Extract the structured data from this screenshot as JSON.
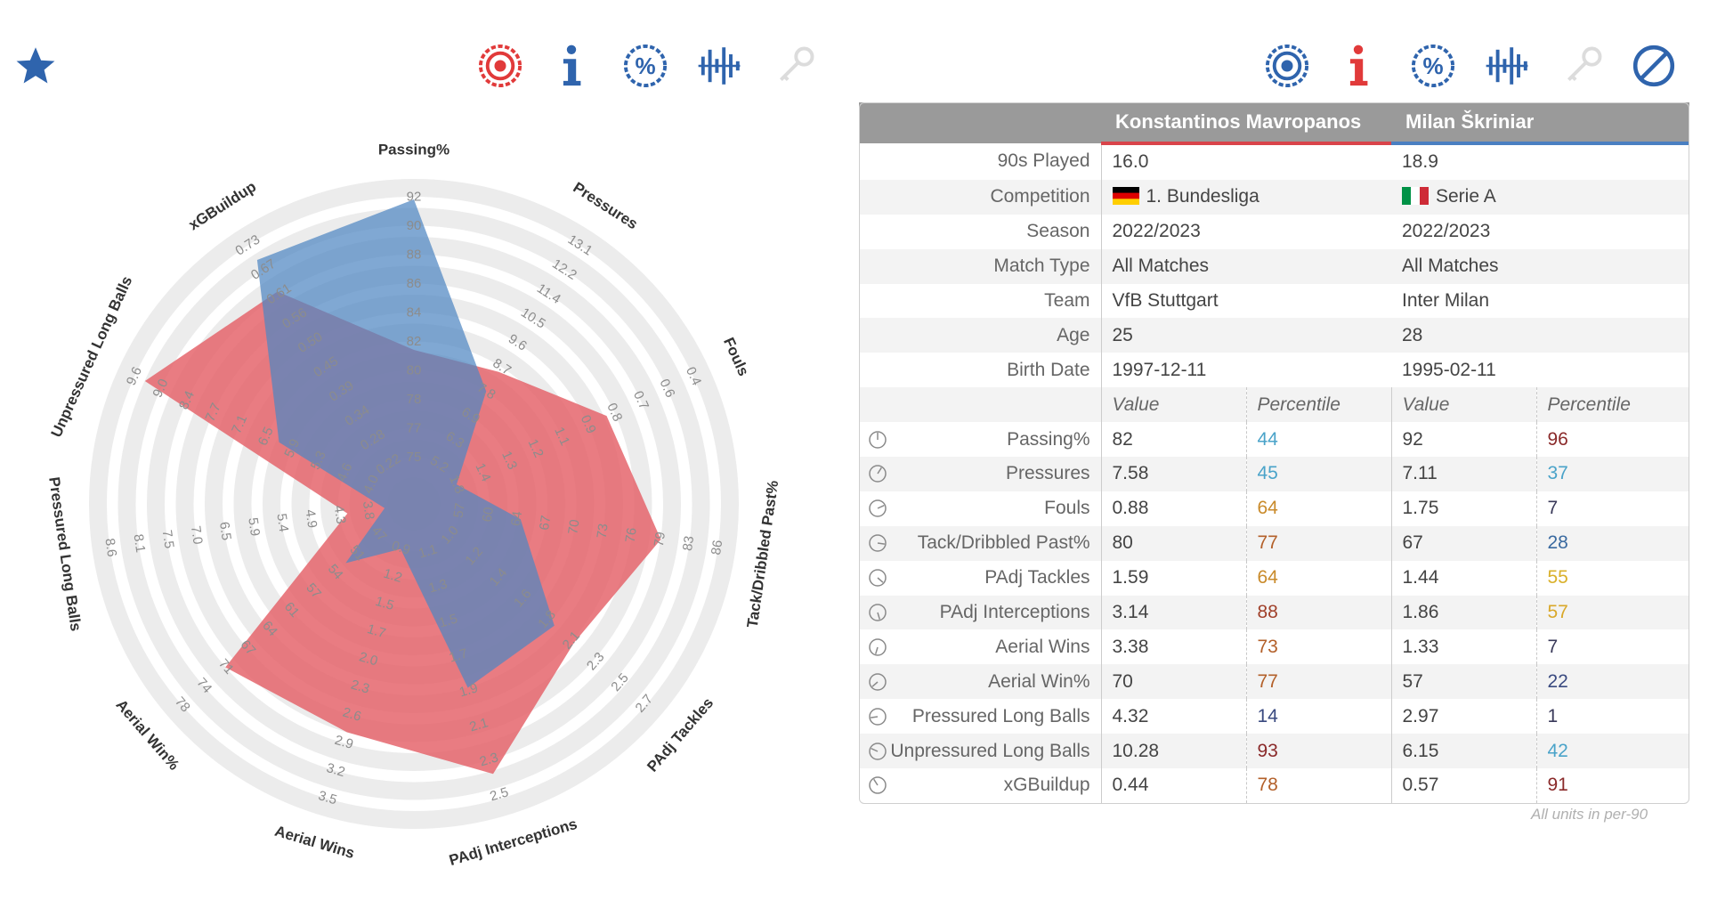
{
  "players": {
    "p1": {
      "name": "Konstantinos Mavropanos",
      "color": "#e45f66"
    },
    "p2": {
      "name": "Milan Škriniar",
      "color": "#4f86c2"
    }
  },
  "info_rows": [
    {
      "label": "90s Played",
      "p1": "16.0",
      "p2": "18.9"
    },
    {
      "label": "Competition",
      "p1": "1. Bundesliga",
      "p2": "Serie A",
      "flags": true
    },
    {
      "label": "Season",
      "p1": "2022/2023",
      "p2": "2022/2023"
    },
    {
      "label": "Match Type",
      "p1": "All Matches",
      "p2": "All Matches"
    },
    {
      "label": "Team",
      "p1": "VfB Stuttgart",
      "p2": "Inter Milan"
    },
    {
      "label": "Age",
      "p1": "25",
      "p2": "28"
    },
    {
      "label": "Birth Date",
      "p1": "1997-12-11",
      "p2": "1995-02-11"
    }
  ],
  "sub_header": {
    "value": "Value",
    "percentile": "Percentile"
  },
  "stat_rows": [
    {
      "label": "Passing%",
      "p1_value": "82",
      "p1_pct": "44",
      "p1_pct_color": "#4aa3c9",
      "p2_value": "92",
      "p2_pct": "96",
      "p2_pct_color": "#8a2a2a"
    },
    {
      "label": "Pressures",
      "p1_value": "7.58",
      "p1_pct": "45",
      "p1_pct_color": "#4aa3c9",
      "p2_value": "7.11",
      "p2_pct": "37",
      "p2_pct_color": "#4aa3c9"
    },
    {
      "label": "Fouls",
      "p1_value": "0.88",
      "p1_pct": "64",
      "p1_pct_color": "#c98a2a",
      "p2_value": "1.75",
      "p2_pct": "7",
      "p2_pct_color": "#3a3a5a"
    },
    {
      "label": "Tack/Dribbled Past%",
      "p1_value": "80",
      "p1_pct": "77",
      "p1_pct_color": "#b3602a",
      "p2_value": "67",
      "p2_pct": "28",
      "p2_pct_color": "#3a6aa0"
    },
    {
      "label": "PAdj Tackles",
      "p1_value": "1.59",
      "p1_pct": "64",
      "p1_pct_color": "#c98a2a",
      "p2_value": "1.44",
      "p2_pct": "55",
      "p2_pct_color": "#d9b02a"
    },
    {
      "label": "PAdj Interceptions",
      "p1_value": "3.14",
      "p1_pct": "88",
      "p1_pct_color": "#a0402a",
      "p2_value": "1.86",
      "p2_pct": "57",
      "p2_pct_color": "#d9a82a"
    },
    {
      "label": "Aerial Wins",
      "p1_value": "3.38",
      "p1_pct": "73",
      "p1_pct_color": "#b3602a",
      "p2_value": "1.33",
      "p2_pct": "7",
      "p2_pct_color": "#3a3a5a"
    },
    {
      "label": "Aerial Win%",
      "p1_value": "70",
      "p1_pct": "77",
      "p1_pct_color": "#b3602a",
      "p2_value": "57",
      "p2_pct": "22",
      "p2_pct_color": "#3a4a80"
    },
    {
      "label": "Pressured Long Balls",
      "p1_value": "4.32",
      "p1_pct": "14",
      "p1_pct_color": "#3a4a80",
      "p2_value": "2.97",
      "p2_pct": "1",
      "p2_pct_color": "#3a3a5a"
    },
    {
      "label": "Unpressured Long Balls",
      "p1_value": "10.28",
      "p1_pct": "93",
      "p1_pct_color": "#8a2a2a",
      "p2_value": "6.15",
      "p2_pct": "42",
      "p2_pct_color": "#4aa3c9"
    },
    {
      "label": "xGBuildup",
      "p1_value": "0.44",
      "p1_pct": "78",
      "p1_pct_color": "#b3602a",
      "p2_value": "0.57",
      "p2_pct": "91",
      "p2_pct_color": "#8a2a2a"
    }
  ],
  "footnote": "All units in per-90",
  "icons": {
    "left": [
      "star-icon",
      "radar-target-icon",
      "info-icon",
      "percent-icon",
      "bars-icon",
      "key-icon"
    ],
    "right": [
      "radar-target-icon",
      "info-icon",
      "percent-icon",
      "bars-icon",
      "key-icon",
      "ban-icon"
    ]
  },
  "chart_data": {
    "type": "radar",
    "axes": [
      "Passing%",
      "Pressures",
      "Fouls",
      "Tack/Dribbled Past%",
      "PAdj Tackles",
      "PAdj Interceptions",
      "Aerial Wins",
      "Aerial Win%",
      "Pressured Long Balls",
      "Unpressured Long Balls",
      "xGBuildup"
    ],
    "axis_ticks": [
      [
        "75",
        "77",
        "78",
        "80",
        "82",
        "84",
        "86",
        "88",
        "90",
        "92"
      ],
      [
        "5.2",
        "6.3",
        "6.9",
        "7.8",
        "8.7",
        "9.6",
        "10.5",
        "11.4",
        "12.2",
        "13.1"
      ],
      [
        "1.8",
        "1.4",
        "1.3",
        "1.2",
        "1.1",
        "0.9",
        "0.8",
        "0.7",
        "0.6",
        "0.4"
      ],
      [
        "57",
        "60",
        "64",
        "67",
        "70",
        "73",
        "76",
        "79",
        "83",
        "86"
      ],
      [
        "1.0",
        "1.2",
        "1.4",
        "1.6",
        "1.8",
        "2.1",
        "2.3",
        "2.5",
        "2.7"
      ],
      [
        "1.1",
        "1.3",
        "1.5",
        "1.7",
        "1.9",
        "2.1",
        "2.3",
        "2.5"
      ],
      [
        "0.9",
        "1.2",
        "1.5",
        "1.7",
        "2.0",
        "2.3",
        "2.6",
        "2.9",
        "3.2",
        "3.5"
      ],
      [
        "47",
        "51",
        "54",
        "57",
        "61",
        "64",
        "67",
        "71",
        "74",
        "78"
      ],
      [
        "3.8",
        "4.3",
        "4.9",
        "5.4",
        "5.9",
        "6.5",
        "7.0",
        "7.5",
        "8.1",
        "8.6"
      ],
      [
        "4.0",
        "4.6",
        "5.3",
        "5.9",
        "6.5",
        "7.1",
        "7.7",
        "8.4",
        "9.0",
        "9.6"
      ],
      [
        "0.22",
        "0.28",
        "0.34",
        "0.39",
        "0.45",
        "0.50",
        "0.56",
        "0.61",
        "0.67",
        "0.73"
      ]
    ],
    "series": [
      {
        "name": "Konstantinos Mavropanos",
        "values": [
          82,
          7.58,
          0.88,
          80,
          1.59,
          3.14,
          3.38,
          70,
          4.32,
          10.28,
          0.44
        ],
        "percentiles": [
          44,
          45,
          64,
          77,
          64,
          88,
          73,
          77,
          14,
          93,
          78
        ],
        "color": "#e45f66"
      },
      {
        "name": "Milan Škriniar",
        "values": [
          92,
          7.11,
          1.75,
          67,
          1.44,
          1.86,
          1.33,
          57,
          2.97,
          6.15,
          0.57
        ],
        "percentiles": [
          96,
          37,
          7,
          28,
          55,
          57,
          7,
          22,
          1,
          42,
          91
        ],
        "color": "#4f86c2"
      }
    ],
    "range_percentile": [
      0,
      100
    ]
  }
}
